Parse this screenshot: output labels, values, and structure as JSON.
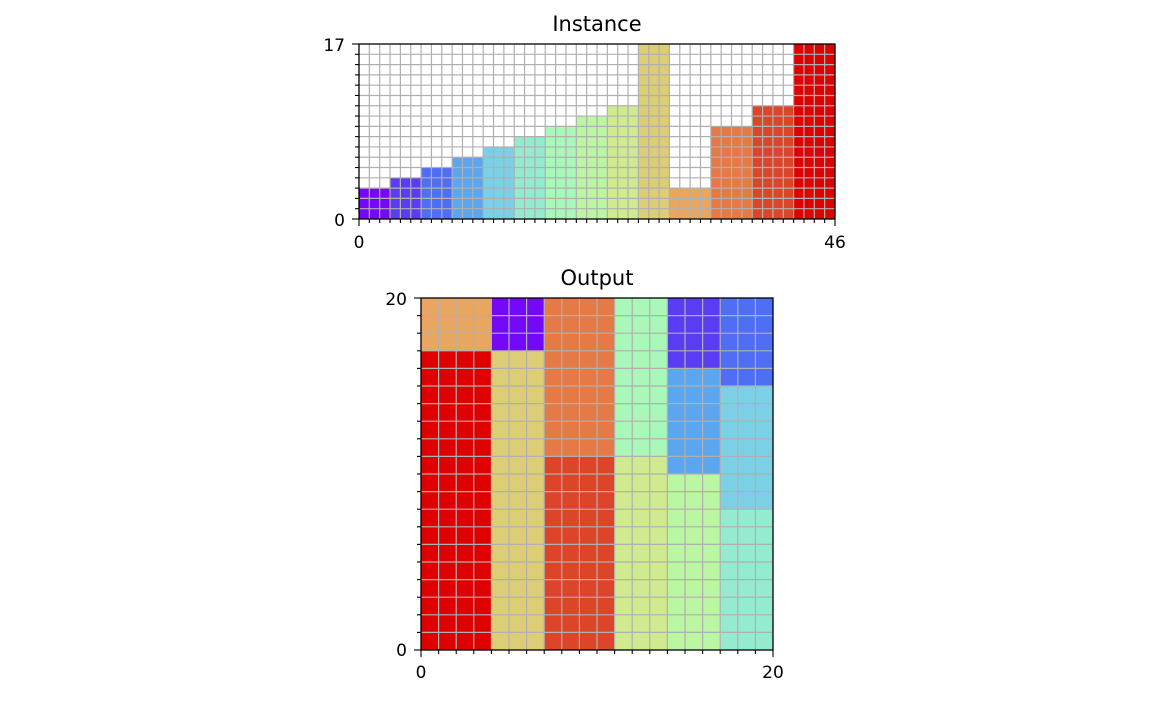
{
  "chart_data": [
    {
      "type": "bar",
      "title": "Instance",
      "xlim": [
        0,
        46
      ],
      "ylim": [
        0,
        17
      ],
      "x_tick_labels": [
        "0",
        "46"
      ],
      "y_tick_labels": [
        "0",
        "17"
      ],
      "grid": true,
      "items": [
        {
          "x": 0,
          "width": 3,
          "height": 3,
          "color": "#7408f8"
        },
        {
          "x": 3,
          "width": 3,
          "height": 4,
          "color": "#5a3df2"
        },
        {
          "x": 6,
          "width": 3,
          "height": 5,
          "color": "#4f6ef3"
        },
        {
          "x": 9,
          "width": 3,
          "height": 6,
          "color": "#5ba6ee"
        },
        {
          "x": 12,
          "width": 3,
          "height": 7,
          "color": "#7cd0e5"
        },
        {
          "x": 15,
          "width": 3,
          "height": 8,
          "color": "#94ebd0"
        },
        {
          "x": 18,
          "width": 3,
          "height": 9,
          "color": "#a9f8b9"
        },
        {
          "x": 21,
          "width": 3,
          "height": 10,
          "color": "#bbf7a3"
        },
        {
          "x": 24,
          "width": 3,
          "height": 11,
          "color": "#cfea8f"
        },
        {
          "x": 27,
          "width": 3,
          "height": 17,
          "color": "#dccd76"
        },
        {
          "x": 30,
          "width": 4,
          "height": 3,
          "color": "#e9a660"
        },
        {
          "x": 34,
          "width": 4,
          "height": 9,
          "color": "#e57a46"
        },
        {
          "x": 38,
          "width": 4,
          "height": 11,
          "color": "#dd4528"
        },
        {
          "x": 42,
          "width": 4,
          "height": 17,
          "color": "#df0000"
        }
      ]
    },
    {
      "type": "heatmap",
      "title": "Output",
      "xlim": [
        0,
        20
      ],
      "ylim": [
        0,
        20
      ],
      "x_tick_labels": [
        "0",
        "20"
      ],
      "y_tick_labels": [
        "0",
        "20"
      ],
      "grid": true,
      "items": [
        {
          "x": 0,
          "y": 0,
          "width": 4,
          "height": 17,
          "color": "#df0000"
        },
        {
          "x": 0,
          "y": 17,
          "width": 4,
          "height": 3,
          "color": "#e9a660"
        },
        {
          "x": 4,
          "y": 0,
          "width": 3,
          "height": 17,
          "color": "#dccd76"
        },
        {
          "x": 4,
          "y": 17,
          "width": 3,
          "height": 3,
          "color": "#7408f8"
        },
        {
          "x": 7,
          "y": 0,
          "width": 4,
          "height": 11,
          "color": "#dd4528"
        },
        {
          "x": 7,
          "y": 11,
          "width": 4,
          "height": 9,
          "color": "#e57a46"
        },
        {
          "x": 11,
          "y": 0,
          "width": 3,
          "height": 11,
          "color": "#cfea8f"
        },
        {
          "x": 11,
          "y": 11,
          "width": 3,
          "height": 9,
          "color": "#a9f8b9"
        },
        {
          "x": 14,
          "y": 0,
          "width": 3,
          "height": 10,
          "color": "#bbf7a3"
        },
        {
          "x": 14,
          "y": 10,
          "width": 3,
          "height": 6,
          "color": "#5ba6ee"
        },
        {
          "x": 14,
          "y": 16,
          "width": 3,
          "height": 4,
          "color": "#5a3df2"
        },
        {
          "x": 17,
          "y": 0,
          "width": 3,
          "height": 8,
          "color": "#94ebd0"
        },
        {
          "x": 17,
          "y": 8,
          "width": 3,
          "height": 7,
          "color": "#7cd0e5"
        },
        {
          "x": 17,
          "y": 15,
          "width": 3,
          "height": 5,
          "color": "#4f6ef3"
        }
      ]
    }
  ],
  "colors": {
    "grid": "#b0b0b0",
    "axis": "#000000",
    "background": "#ffffff"
  }
}
